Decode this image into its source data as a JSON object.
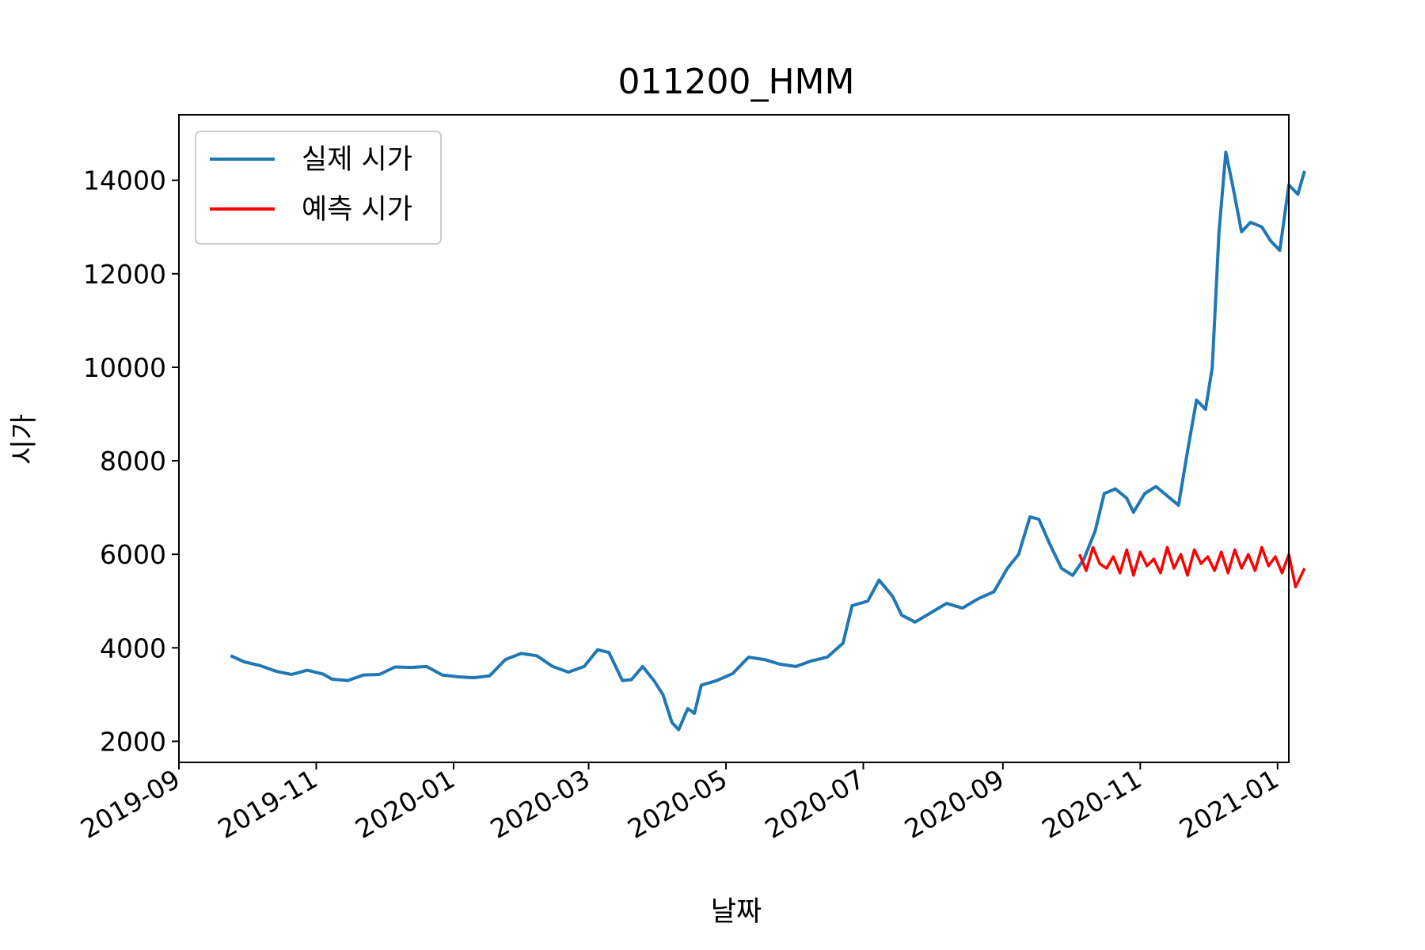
{
  "chart_data": {
    "type": "line",
    "title": "011200_HMM",
    "xlabel": "날짜",
    "ylabel": "시가",
    "x_ticks": [
      "2019-09",
      "2019-11",
      "2020-01",
      "2020-03",
      "2020-05",
      "2020-07",
      "2020-09",
      "2020-11",
      "2021-01"
    ],
    "y_ticks": [
      2000,
      4000,
      6000,
      8000,
      10000,
      12000,
      14000
    ],
    "xlim": [
      "2019-09-01",
      "2021-01-06"
    ],
    "ylim": [
      1550,
      15400
    ],
    "grid": false,
    "legend_position": "top-left",
    "series": [
      {
        "name": "실제 시가",
        "color": "#1f77b4",
        "points": [
          [
            "2019-09-24",
            3830
          ],
          [
            "2019-09-30",
            3700
          ],
          [
            "2019-10-07",
            3620
          ],
          [
            "2019-10-14",
            3500
          ],
          [
            "2019-10-21",
            3430
          ],
          [
            "2019-10-28",
            3520
          ],
          [
            "2019-11-04",
            3440
          ],
          [
            "2019-11-08",
            3330
          ],
          [
            "2019-11-15",
            3300
          ],
          [
            "2019-11-22",
            3420
          ],
          [
            "2019-11-29",
            3430
          ],
          [
            "2019-12-06",
            3590
          ],
          [
            "2019-12-13",
            3580
          ],
          [
            "2019-12-20",
            3600
          ],
          [
            "2019-12-27",
            3420
          ],
          [
            "2020-01-03",
            3380
          ],
          [
            "2020-01-10",
            3360
          ],
          [
            "2020-01-17",
            3400
          ],
          [
            "2020-01-24",
            3750
          ],
          [
            "2020-01-31",
            3880
          ],
          [
            "2020-02-07",
            3830
          ],
          [
            "2020-02-14",
            3600
          ],
          [
            "2020-02-21",
            3480
          ],
          [
            "2020-02-28",
            3600
          ],
          [
            "2020-03-05",
            3960
          ],
          [
            "2020-03-10",
            3900
          ],
          [
            "2020-03-16",
            3300
          ],
          [
            "2020-03-20",
            3320
          ],
          [
            "2020-03-25",
            3600
          ],
          [
            "2020-03-30",
            3300
          ],
          [
            "2020-04-03",
            3000
          ],
          [
            "2020-04-07",
            2400
          ],
          [
            "2020-04-10",
            2250
          ],
          [
            "2020-04-14",
            2700
          ],
          [
            "2020-04-17",
            2600
          ],
          [
            "2020-04-20",
            3200
          ],
          [
            "2020-04-27",
            3300
          ],
          [
            "2020-05-04",
            3450
          ],
          [
            "2020-05-11",
            3800
          ],
          [
            "2020-05-18",
            3750
          ],
          [
            "2020-05-25",
            3650
          ],
          [
            "2020-06-01",
            3600
          ],
          [
            "2020-06-08",
            3720
          ],
          [
            "2020-06-15",
            3800
          ],
          [
            "2020-06-22",
            4100
          ],
          [
            "2020-06-26",
            4900
          ],
          [
            "2020-07-03",
            5000
          ],
          [
            "2020-07-08",
            5450
          ],
          [
            "2020-07-14",
            5100
          ],
          [
            "2020-07-18",
            4700
          ],
          [
            "2020-07-24",
            4550
          ],
          [
            "2020-07-31",
            4750
          ],
          [
            "2020-08-07",
            4950
          ],
          [
            "2020-08-14",
            4850
          ],
          [
            "2020-08-21",
            5050
          ],
          [
            "2020-08-28",
            5200
          ],
          [
            "2020-09-03",
            5700
          ],
          [
            "2020-09-08",
            6000
          ],
          [
            "2020-09-13",
            6800
          ],
          [
            "2020-09-17",
            6750
          ],
          [
            "2020-09-22",
            6200
          ],
          [
            "2020-09-27",
            5700
          ],
          [
            "2020-10-02",
            5550
          ],
          [
            "2020-10-07",
            5900
          ],
          [
            "2020-10-12",
            6500
          ],
          [
            "2020-10-16",
            7300
          ],
          [
            "2020-10-21",
            7400
          ],
          [
            "2020-10-26",
            7200
          ],
          [
            "2020-10-29",
            6900
          ],
          [
            "2020-11-03",
            7300
          ],
          [
            "2020-11-08",
            7450
          ],
          [
            "2020-11-13",
            7250
          ],
          [
            "2020-11-18",
            7050
          ],
          [
            "2020-11-22",
            8200
          ],
          [
            "2020-11-26",
            9300
          ],
          [
            "2020-11-30",
            9100
          ],
          [
            "2020-12-03",
            10000
          ],
          [
            "2020-12-06",
            12900
          ],
          [
            "2020-12-09",
            14600
          ],
          [
            "2020-12-12",
            13900
          ],
          [
            "2020-12-16",
            12900
          ],
          [
            "2020-12-20",
            13100
          ],
          [
            "2020-12-25",
            13000
          ],
          [
            "2020-12-29",
            12700
          ],
          [
            "2021-01-02",
            12500
          ],
          [
            "2021-01-06",
            13900
          ],
          [
            "2021-01-10",
            13700
          ],
          [
            "2021-01-13",
            14200
          ]
        ]
      },
      {
        "name": "예측 시가",
        "color": "#ff0000",
        "points": [
          [
            "2020-10-05",
            6000
          ],
          [
            "2020-10-08",
            5650
          ],
          [
            "2020-10-11",
            6150
          ],
          [
            "2020-10-14",
            5800
          ],
          [
            "2020-10-17",
            5700
          ],
          [
            "2020-10-20",
            5950
          ],
          [
            "2020-10-23",
            5600
          ],
          [
            "2020-10-26",
            6100
          ],
          [
            "2020-10-29",
            5550
          ],
          [
            "2020-11-01",
            6050
          ],
          [
            "2020-11-04",
            5750
          ],
          [
            "2020-11-07",
            5900
          ],
          [
            "2020-11-10",
            5600
          ],
          [
            "2020-11-13",
            6150
          ],
          [
            "2020-11-16",
            5700
          ],
          [
            "2020-11-19",
            6000
          ],
          [
            "2020-11-22",
            5550
          ],
          [
            "2020-11-25",
            6100
          ],
          [
            "2020-11-28",
            5800
          ],
          [
            "2020-12-01",
            5950
          ],
          [
            "2020-12-04",
            5650
          ],
          [
            "2020-12-07",
            6050
          ],
          [
            "2020-12-10",
            5600
          ],
          [
            "2020-12-13",
            6100
          ],
          [
            "2020-12-16",
            5700
          ],
          [
            "2020-12-19",
            6000
          ],
          [
            "2020-12-22",
            5650
          ],
          [
            "2020-12-25",
            6150
          ],
          [
            "2020-12-28",
            5750
          ],
          [
            "2020-12-31",
            5950
          ],
          [
            "2021-01-03",
            5600
          ],
          [
            "2021-01-06",
            6000
          ],
          [
            "2021-01-09",
            5300
          ],
          [
            "2021-01-13",
            5700
          ]
        ]
      }
    ]
  }
}
